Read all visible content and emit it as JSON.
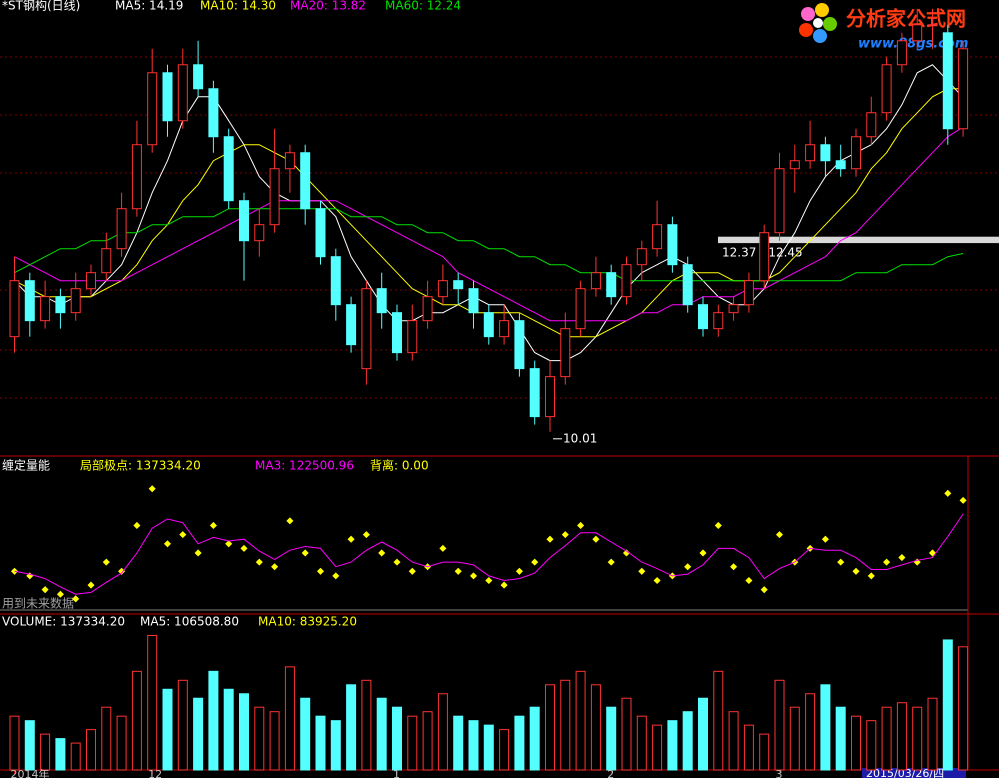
{
  "logo": {
    "title": "分析家公式网",
    "url": "www.88gs.com"
  },
  "chart_data": [
    {
      "type": "candlestick",
      "title": "*ST钢构(日线)",
      "up_color": "#ff3232",
      "down_color": "#54ffff",
      "ylim": [
        9.72,
        15.41
      ],
      "open": [
        11.2,
        11.9,
        11.4,
        11.7,
        11.5,
        11.8,
        12.0,
        12.3,
        12.8,
        13.6,
        14.5,
        13.9,
        14.6,
        14.3,
        13.7,
        12.9,
        12.4,
        12.6,
        13.3,
        13.5,
        12.8,
        12.2,
        11.6,
        10.8,
        11.8,
        11.5,
        11.0,
        11.4,
        11.7,
        11.9,
        11.8,
        11.5,
        11.2,
        11.4,
        10.8,
        10.2,
        10.7,
        11.3,
        11.8,
        12.0,
        11.7,
        12.1,
        12.3,
        12.6,
        12.1,
        11.6,
        11.3,
        11.5,
        11.6,
        11.9,
        12.5,
        13.3,
        13.4,
        13.6,
        13.4,
        13.3,
        13.7,
        14.0,
        14.6,
        14.9,
        15.1,
        15.0,
        13.8
      ],
      "high": [
        12.2,
        12.0,
        11.9,
        11.8,
        12.0,
        12.1,
        12.5,
        13.0,
        13.9,
        14.8,
        14.6,
        14.8,
        14.9,
        14.4,
        13.8,
        13.0,
        12.8,
        13.8,
        13.6,
        13.6,
        12.9,
        12.3,
        11.7,
        11.9,
        12.0,
        11.6,
        11.6,
        11.9,
        12.1,
        12.0,
        11.9,
        11.6,
        11.6,
        11.5,
        10.9,
        10.9,
        11.5,
        11.9,
        12.2,
        12.1,
        12.2,
        12.4,
        12.9,
        12.7,
        12.2,
        11.7,
        11.6,
        11.7,
        12.0,
        12.6,
        13.5,
        13.6,
        13.9,
        13.7,
        13.6,
        13.8,
        14.2,
        14.7,
        15.0,
        15.3,
        15.3,
        15.1,
        14.9
      ],
      "low": [
        11.0,
        11.2,
        11.3,
        11.3,
        11.4,
        11.7,
        11.9,
        12.2,
        12.7,
        13.5,
        13.7,
        13.8,
        14.2,
        13.5,
        12.8,
        11.9,
        12.2,
        12.5,
        13.0,
        12.6,
        12.1,
        11.4,
        11.0,
        10.6,
        11.3,
        10.9,
        10.9,
        11.3,
        11.6,
        11.6,
        11.3,
        11.1,
        11.1,
        10.7,
        10.1,
        10.01,
        10.6,
        11.2,
        11.7,
        11.6,
        11.6,
        11.9,
        12.2,
        12.0,
        11.5,
        11.2,
        11.2,
        11.4,
        11.5,
        11.8,
        12.4,
        13.0,
        13.3,
        13.2,
        13.2,
        13.2,
        13.6,
        13.9,
        14.5,
        14.8,
        14.8,
        13.6,
        13.7
      ],
      "close": [
        11.9,
        11.4,
        11.7,
        11.5,
        11.8,
        12.0,
        12.3,
        12.8,
        13.6,
        14.5,
        13.9,
        14.6,
        14.3,
        13.7,
        12.9,
        12.4,
        12.6,
        13.3,
        13.5,
        12.8,
        12.2,
        11.6,
        11.1,
        11.8,
        11.5,
        11.0,
        11.4,
        11.7,
        11.9,
        11.8,
        11.5,
        11.2,
        11.4,
        10.8,
        10.2,
        10.7,
        11.3,
        11.8,
        12.0,
        11.7,
        12.1,
        12.3,
        12.6,
        12.1,
        11.6,
        11.3,
        11.5,
        11.6,
        11.9,
        12.5,
        13.3,
        13.4,
        13.6,
        13.4,
        13.3,
        13.7,
        14.0,
        14.6,
        14.9,
        15.1,
        15.1,
        13.8,
        14.8
      ],
      "series": [
        {
          "name": "MA5: 14.19",
          "color": "#ffffff",
          "values": [
            11.9,
            11.7,
            11.7,
            11.6,
            11.7,
            11.7,
            11.9,
            12.1,
            12.5,
            13.0,
            13.4,
            13.9,
            14.2,
            14.2,
            13.9,
            13.6,
            13.2,
            13.0,
            12.9,
            12.9,
            12.9,
            12.7,
            12.2,
            11.9,
            11.6,
            11.4,
            11.4,
            11.5,
            11.5,
            11.6,
            11.7,
            11.6,
            11.6,
            11.3,
            11.0,
            10.9,
            10.9,
            11.0,
            11.2,
            11.5,
            11.8,
            12.0,
            12.1,
            12.2,
            12.1,
            11.9,
            11.7,
            11.6,
            11.6,
            11.8,
            12.2,
            12.5,
            12.9,
            13.2,
            13.4,
            13.5,
            13.6,
            13.8,
            14.1,
            14.5,
            14.6,
            14.4,
            14.19
          ]
        },
        {
          "name": "MA10: 14.30",
          "color": "#ffff00",
          "values": [
            11.9,
            11.8,
            11.7,
            11.7,
            11.7,
            11.7,
            11.8,
            11.9,
            12.1,
            12.4,
            12.6,
            12.9,
            13.1,
            13.4,
            13.5,
            13.6,
            13.6,
            13.5,
            13.4,
            13.2,
            13.0,
            12.8,
            12.6,
            12.4,
            12.2,
            12.0,
            11.8,
            11.7,
            11.6,
            11.6,
            11.5,
            11.5,
            11.5,
            11.5,
            11.4,
            11.3,
            11.2,
            11.2,
            11.2,
            11.3,
            11.4,
            11.5,
            11.7,
            11.9,
            12.0,
            12.0,
            12.0,
            11.9,
            11.9,
            11.9,
            12.0,
            12.2,
            12.4,
            12.6,
            12.8,
            13.0,
            13.3,
            13.5,
            13.8,
            14.0,
            14.2,
            14.3,
            14.3
          ]
        },
        {
          "name": "MA20: 13.82",
          "color": "#ff00ff",
          "values": [
            12.2,
            12.1,
            12.0,
            11.9,
            11.9,
            11.9,
            11.9,
            11.9,
            12.0,
            12.1,
            12.2,
            12.3,
            12.4,
            12.5,
            12.6,
            12.7,
            12.8,
            12.9,
            12.9,
            12.9,
            12.9,
            12.9,
            12.8,
            12.7,
            12.6,
            12.5,
            12.4,
            12.3,
            12.2,
            12.0,
            11.9,
            11.8,
            11.7,
            11.6,
            11.5,
            11.4,
            11.4,
            11.4,
            11.4,
            11.4,
            11.4,
            11.5,
            11.5,
            11.6,
            11.6,
            11.7,
            11.7,
            11.7,
            11.8,
            11.8,
            11.9,
            12.0,
            12.1,
            12.2,
            12.4,
            12.5,
            12.7,
            12.9,
            13.1,
            13.3,
            13.5,
            13.7,
            13.82
          ]
        },
        {
          "name": "MA60: 12.24",
          "color": "#00e000",
          "values": [
            12.0,
            12.1,
            12.2,
            12.3,
            12.3,
            12.4,
            12.4,
            12.5,
            12.5,
            12.6,
            12.6,
            12.7,
            12.7,
            12.7,
            12.8,
            12.8,
            12.8,
            12.8,
            12.8,
            12.8,
            12.8,
            12.8,
            12.7,
            12.7,
            12.7,
            12.6,
            12.6,
            12.5,
            12.5,
            12.4,
            12.4,
            12.3,
            12.3,
            12.2,
            12.2,
            12.1,
            12.1,
            12.0,
            12.0,
            12.0,
            11.9,
            11.9,
            11.9,
            11.9,
            11.9,
            11.9,
            11.9,
            11.9,
            11.9,
            11.9,
            11.9,
            11.9,
            11.9,
            11.9,
            11.9,
            12.0,
            12.0,
            12.0,
            12.1,
            12.1,
            12.1,
            12.2,
            12.24
          ]
        }
      ],
      "band": {
        "low": 12.37,
        "high": 12.45,
        "label": "12.37 - 12.45"
      }
    },
    {
      "type": "line",
      "title": "缠定量能",
      "ylim": [
        20000,
        165000
      ],
      "note": "用到未来数据",
      "extra_legend": {
        "text": "背离: 0.00",
        "color": "#ffff00"
      },
      "series": [
        {
          "name": "局部极点: 137334.20",
          "color": "#ffff00",
          "mode": "markers",
          "values": [
            60000,
            55000,
            40000,
            35000,
            30000,
            45000,
            70000,
            60000,
            110000,
            150000,
            90000,
            100000,
            80000,
            110000,
            90000,
            85000,
            70000,
            65000,
            115000,
            80000,
            60000,
            55000,
            95000,
            100000,
            80000,
            70000,
            60000,
            65000,
            85000,
            60000,
            55000,
            50000,
            45000,
            60000,
            70000,
            95000,
            100000,
            110000,
            95000,
            70000,
            80000,
            60000,
            50000,
            55000,
            65000,
            80000,
            110000,
            65000,
            50000,
            40000,
            100000,
            70000,
            85000,
            95000,
            70000,
            60000,
            55000,
            70000,
            75000,
            70000,
            80000,
            145000,
            137334.2
          ]
        },
        {
          "name": "MA3: 122500.96",
          "color": "#ff00ff",
          "mode": "line",
          "values": [
            60000,
            57000,
            52000,
            43000,
            35000,
            37000,
            48000,
            58000,
            80000,
            107000,
            117000,
            113000,
            90000,
            97000,
            93000,
            95000,
            82000,
            73000,
            83000,
            87000,
            85000,
            65000,
            70000,
            83000,
            92000,
            83000,
            70000,
            65000,
            70000,
            70000,
            67000,
            55000,
            50000,
            52000,
            58000,
            75000,
            88000,
            102000,
            102000,
            92000,
            82000,
            70000,
            63000,
            55000,
            57000,
            67000,
            85000,
            85000,
            75000,
            52000,
            63000,
            70000,
            85000,
            83000,
            83000,
            75000,
            62000,
            62000,
            67000,
            72000,
            75000,
            98000,
            122500.96
          ]
        }
      ]
    },
    {
      "type": "bar",
      "title": "VOLUME: 137334.20",
      "ylim": [
        0,
        165000
      ],
      "legend": [
        {
          "text": "MA5: 106508.80",
          "color": "#ffffff"
        },
        {
          "text": "MA10: 83925.20",
          "color": "#ffff00"
        }
      ],
      "values": [
        60000,
        55000,
        40000,
        35000,
        30000,
        45000,
        70000,
        60000,
        110000,
        150000,
        90000,
        100000,
        80000,
        110000,
        90000,
        85000,
        70000,
        65000,
        115000,
        80000,
        60000,
        55000,
        95000,
        100000,
        80000,
        70000,
        60000,
        65000,
        85000,
        60000,
        55000,
        50000,
        45000,
        60000,
        70000,
        95000,
        100000,
        110000,
        95000,
        70000,
        80000,
        60000,
        50000,
        55000,
        65000,
        80000,
        110000,
        65000,
        50000,
        40000,
        100000,
        70000,
        85000,
        95000,
        70000,
        60000,
        55000,
        70000,
        75000,
        70000,
        80000,
        145000,
        137334.2
      ],
      "categories": [
        "2014年",
        null,
        null,
        null,
        null,
        null,
        null,
        null,
        null,
        "12",
        null,
        null,
        null,
        null,
        null,
        null,
        null,
        null,
        null,
        null,
        null,
        null,
        null,
        null,
        null,
        "1",
        null,
        null,
        null,
        null,
        null,
        null,
        null,
        null,
        null,
        null,
        null,
        null,
        null,
        "2",
        null,
        null,
        null,
        null,
        null,
        null,
        null,
        null,
        null,
        null,
        "3",
        null,
        null,
        null,
        null,
        null,
        null,
        null,
        null,
        null,
        null,
        null,
        null
      ],
      "cursor_label": "2015/03/26/四"
    }
  ]
}
